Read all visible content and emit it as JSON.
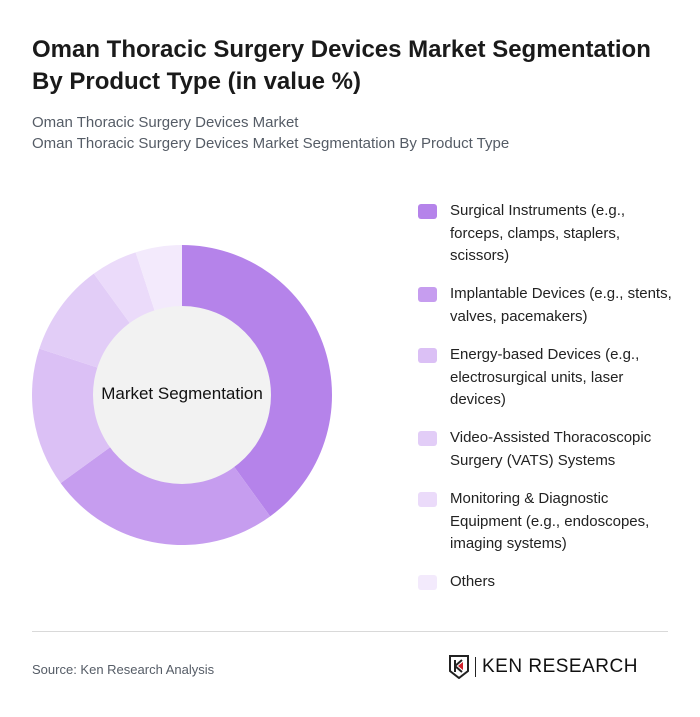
{
  "header": {
    "title": "Oman Thoracic Surgery Devices Market Segmentation By Product Type (in value %)",
    "subtitle1": "Oman Thoracic Surgery Devices Market",
    "subtitle2": "Oman Thoracic Surgery Devices Market Segmentation By Product Type"
  },
  "chart_data": {
    "type": "pie",
    "donut": true,
    "center_label": "Market Segmentation",
    "legend_position": "right",
    "categories": [
      "Surgical Instruments (e.g., forceps, clamps, staplers, scissors)",
      "Implantable Devices (e.g., stents, valves, pacemakers)",
      "Energy-based Devices (e.g., electrosurgical units, laser devices)",
      "Video-Assisted Thoracoscopic Surgery (VATS) Systems",
      "Monitoring & Diagnostic Equipment (e.g., endoscopes, imaging systems)",
      "Others"
    ],
    "values": [
      40,
      25,
      15,
      10,
      5,
      5
    ],
    "colors": [
      "#b583ea",
      "#c69def",
      "#dbc0f5",
      "#e2cdf7",
      "#ebdbfa",
      "#f3eafc"
    ]
  },
  "footer": {
    "source": "Source: Ken Research Analysis",
    "logo": "KEN RESEARCH"
  }
}
